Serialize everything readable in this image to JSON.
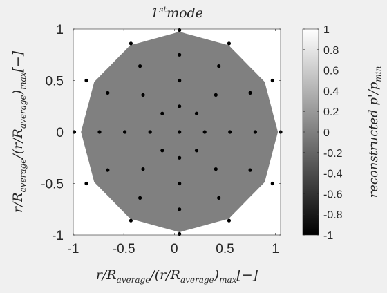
{
  "chart_data": {
    "type": "scatter",
    "title_base": "1",
    "title_sup": "st",
    "title_rest": "mode",
    "xlabel": "r/R_average/(r/R_average)_max[−]",
    "ylabel": "r/R_average/(r/R_average)_max[−]",
    "xlim": [
      -1,
      1.05
    ],
    "ylim": [
      -1,
      1
    ],
    "x_ticks": [
      -1,
      -0.5,
      0,
      0.5,
      1
    ],
    "y_ticks": [
      -1,
      -0.5,
      0,
      0.5,
      1
    ],
    "x_tick_labels": [
      "-1",
      "-0.5",
      "0",
      "0.5",
      "1"
    ],
    "y_tick_labels": [
      "-1",
      "-0.5",
      "0",
      "0.5",
      "1"
    ],
    "fill_value": 0,
    "colorbar": {
      "label": "reconstructed p'/p_min",
      "range": [
        -1,
        1
      ],
      "ticks": [
        1,
        0.8,
        0.6,
        0.4,
        0.2,
        0,
        -0.2,
        -0.4,
        -0.6,
        -0.8,
        -1
      ],
      "tick_labels": [
        "1",
        "0.8",
        "0.6",
        "0.4",
        "0.2",
        "0",
        "-0.2",
        "-0.4",
        "-0.6",
        "-0.8",
        "-1"
      ]
    },
    "colors": {
      "fill": "#808080",
      "point": "#000000",
      "axes_bg": "#ffffff",
      "figure_bg": "#f0f0f0"
    },
    "points": [
      [
        0.05,
        0.99
      ],
      [
        -0.43,
        0.86
      ],
      [
        0.54,
        0.86
      ],
      [
        -0.87,
        0.5
      ],
      [
        0.97,
        0.5
      ],
      [
        -0.34,
        0.64
      ],
      [
        0.05,
        0.75
      ],
      [
        0.44,
        0.64
      ],
      [
        -0.66,
        0.38
      ],
      [
        -0.31,
        0.36
      ],
      [
        0.05,
        0.5
      ],
      [
        0.41,
        0.36
      ],
      [
        0.75,
        0.38
      ],
      [
        -0.12,
        0.18
      ],
      [
        0.05,
        0.25
      ],
      [
        0.22,
        0.18
      ],
      [
        -0.99,
        0
      ],
      [
        -0.74,
        0
      ],
      [
        -0.49,
        0
      ],
      [
        -0.24,
        0
      ],
      [
        0.05,
        0
      ],
      [
        0.3,
        0
      ],
      [
        0.55,
        0
      ],
      [
        0.8,
        0
      ],
      [
        1.05,
        0
      ],
      [
        -0.12,
        -0.18
      ],
      [
        0.05,
        -0.25
      ],
      [
        0.22,
        -0.18
      ],
      [
        -0.66,
        -0.37
      ],
      [
        -0.31,
        -0.36
      ],
      [
        0.05,
        -0.5
      ],
      [
        0.41,
        -0.36
      ],
      [
        0.75,
        -0.37
      ],
      [
        -0.87,
        -0.5
      ],
      [
        -0.34,
        -0.64
      ],
      [
        0.05,
        -0.75
      ],
      [
        0.44,
        -0.64
      ],
      [
        0.97,
        -0.5
      ],
      [
        -0.43,
        -0.86
      ],
      [
        0.54,
        -0.86
      ],
      [
        0.05,
        -0.99
      ]
    ]
  }
}
